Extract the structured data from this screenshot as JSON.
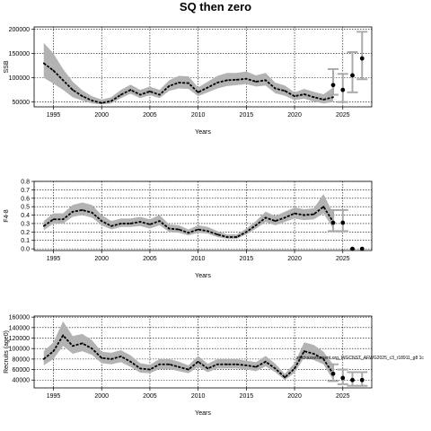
{
  "figure": {
    "title": "SQ then zero"
  },
  "chart_data": [
    {
      "type": "line",
      "ylabel": "SSB",
      "xlabel": "Years",
      "xlim": [
        1993,
        2028
      ],
      "ylim": [
        40000,
        205000
      ],
      "x_ticks": [
        1995,
        2000,
        2005,
        2010,
        2015,
        2020,
        2025
      ],
      "y_ticks": [
        50000,
        100000,
        150000,
        200000
      ],
      "grid": true,
      "annotation": "",
      "history": {
        "x": [
          1994,
          1995,
          1996,
          1997,
          1998,
          1999,
          2000,
          2001,
          2002,
          2003,
          2004,
          2005,
          2006,
          2007,
          2008,
          2009,
          2010,
          2011,
          2012,
          2013,
          2014,
          2015,
          2016,
          2017,
          2018,
          2019,
          2020,
          2021,
          2022,
          2023,
          2024
        ],
        "median": [
          130000,
          115000,
          95000,
          75000,
          62000,
          53000,
          48000,
          52000,
          65000,
          75000,
          65000,
          72000,
          65000,
          83000,
          90000,
          89000,
          70000,
          80000,
          90000,
          95000,
          96000,
          98000,
          92000,
          95000,
          78000,
          73000,
          62000,
          66000,
          60000,
          55000,
          60000
        ],
        "lower": [
          100000,
          88000,
          75000,
          60000,
          53000,
          47000,
          45000,
          47000,
          58000,
          67000,
          58000,
          64000,
          58000,
          73000,
          78000,
          77000,
          62000,
          70000,
          78000,
          83000,
          85000,
          87000,
          82000,
          84000,
          68000,
          63000,
          54000,
          57000,
          51000,
          47000,
          50000
        ],
        "upper": [
          172000,
          150000,
          118000,
          92000,
          74000,
          62000,
          55000,
          60000,
          75000,
          86000,
          75000,
          82000,
          75000,
          95000,
          104000,
          103000,
          80000,
          92000,
          104000,
          110000,
          110000,
          113000,
          105000,
          110000,
          90000,
          84000,
          70000,
          77000,
          71000,
          66000,
          80000
        ]
      },
      "projection": {
        "x": [
          2024,
          2025,
          2026,
          2027
        ],
        "median": [
          85000,
          75000,
          105000,
          140000
        ],
        "lower": [
          65000,
          50000,
          70000,
          97000
        ],
        "upper": [
          118000,
          108000,
          153000,
          195000
        ]
      }
    },
    {
      "type": "line",
      "ylabel": "F4-8",
      "xlabel": "Years",
      "xlim": [
        1993,
        2028
      ],
      "ylim": [
        -0.02,
        0.8
      ],
      "x_ticks": [
        1995,
        2000,
        2005,
        2010,
        2015,
        2020,
        2025
      ],
      "y_ticks": [
        0.0,
        0.1,
        0.2,
        0.3,
        0.4,
        0.5,
        0.6,
        0.7,
        0.8
      ],
      "grid": true,
      "annotation": "",
      "history": {
        "x": [
          1994,
          1995,
          1996,
          1997,
          1998,
          1999,
          2000,
          2001,
          2002,
          2003,
          2004,
          2005,
          2006,
          2007,
          2008,
          2009,
          2010,
          2011,
          2012,
          2013,
          2014,
          2015,
          2016,
          2017,
          2018,
          2019,
          2020,
          2021,
          2022,
          2023,
          2024
        ],
        "median": [
          0.27,
          0.35,
          0.35,
          0.44,
          0.46,
          0.43,
          0.33,
          0.27,
          0.3,
          0.3,
          0.32,
          0.29,
          0.33,
          0.24,
          0.23,
          0.19,
          0.23,
          0.21,
          0.17,
          0.14,
          0.14,
          0.2,
          0.28,
          0.37,
          0.33,
          0.37,
          0.42,
          0.4,
          0.41,
          0.5,
          0.32
        ],
        "lower": [
          0.22,
          0.3,
          0.3,
          0.38,
          0.4,
          0.37,
          0.28,
          0.23,
          0.26,
          0.26,
          0.27,
          0.24,
          0.28,
          0.2,
          0.19,
          0.16,
          0.19,
          0.18,
          0.14,
          0.12,
          0.12,
          0.17,
          0.24,
          0.32,
          0.28,
          0.32,
          0.36,
          0.34,
          0.35,
          0.42,
          0.24
        ],
        "upper": [
          0.33,
          0.42,
          0.42,
          0.52,
          0.55,
          0.52,
          0.4,
          0.33,
          0.36,
          0.36,
          0.38,
          0.35,
          0.4,
          0.29,
          0.28,
          0.23,
          0.28,
          0.26,
          0.21,
          0.17,
          0.17,
          0.24,
          0.33,
          0.44,
          0.39,
          0.44,
          0.49,
          0.47,
          0.48,
          0.65,
          0.42
        ]
      },
      "projection": {
        "x": [
          2024,
          2025,
          2026,
          2027
        ],
        "median": [
          0.31,
          0.31,
          0.0,
          0.0
        ],
        "lower": [
          0.21,
          0.21,
          0.0,
          0.0
        ],
        "upper": [
          0.46,
          0.46,
          0.0,
          0.0
        ]
      }
    },
    {
      "type": "line",
      "ylabel": "Recruits (age0)",
      "xlabel": "Years",
      "xlim": [
        1993,
        2028
      ],
      "ylim": [
        25000,
        162000
      ],
      "x_ticks": [
        1995,
        2000,
        2005,
        2010,
        2015,
        2020,
        2025
      ],
      "y_ticks": [
        40000,
        60000,
        80000,
        100000,
        120000,
        140000,
        160000
      ],
      "grid": true,
      "annotation": "stockassessment.org_WGCNST_AFWG2025_c3_r18911_g8 1c",
      "history": {
        "x": [
          1994,
          1995,
          1996,
          1997,
          1998,
          1999,
          2000,
          2001,
          2002,
          2003,
          2004,
          2005,
          2006,
          2007,
          2008,
          2009,
          2010,
          2011,
          2012,
          2013,
          2014,
          2015,
          2016,
          2017,
          2018,
          2019,
          2020,
          2021,
          2022,
          2023,
          2024
        ],
        "median": [
          80000,
          95000,
          125000,
          105000,
          110000,
          100000,
          82000,
          80000,
          85000,
          75000,
          62000,
          60000,
          70000,
          70000,
          65000,
          60000,
          75000,
          62000,
          70000,
          70000,
          70000,
          68000,
          65000,
          75000,
          62000,
          45000,
          62000,
          95000,
          90000,
          80000,
          52000
        ],
        "lower": [
          68000,
          80000,
          105000,
          90000,
          95000,
          88000,
          72000,
          70000,
          74000,
          65000,
          54000,
          53000,
          61000,
          61000,
          57000,
          53000,
          65000,
          55000,
          62000,
          62000,
          62000,
          60000,
          57000,
          66000,
          55000,
          40000,
          54000,
          83000,
          78000,
          70000,
          40000
        ],
        "upper": [
          95000,
          112000,
          152000,
          124000,
          128000,
          116000,
          94000,
          92000,
          97000,
          87000,
          72000,
          69000,
          80000,
          80000,
          75000,
          68000,
          86000,
          71000,
          80000,
          80000,
          80000,
          77000,
          74000,
          86000,
          71000,
          52000,
          72000,
          112000,
          107000,
          94000,
          70000
        ]
      },
      "projection": {
        "x": [
          2024,
          2025,
          2026,
          2027
        ],
        "median": [
          52000,
          44000,
          40000,
          40000
        ],
        "lower": [
          38000,
          32000,
          29000,
          29000
        ],
        "upper": [
          70000,
          60000,
          55000,
          55000
        ]
      }
    }
  ]
}
